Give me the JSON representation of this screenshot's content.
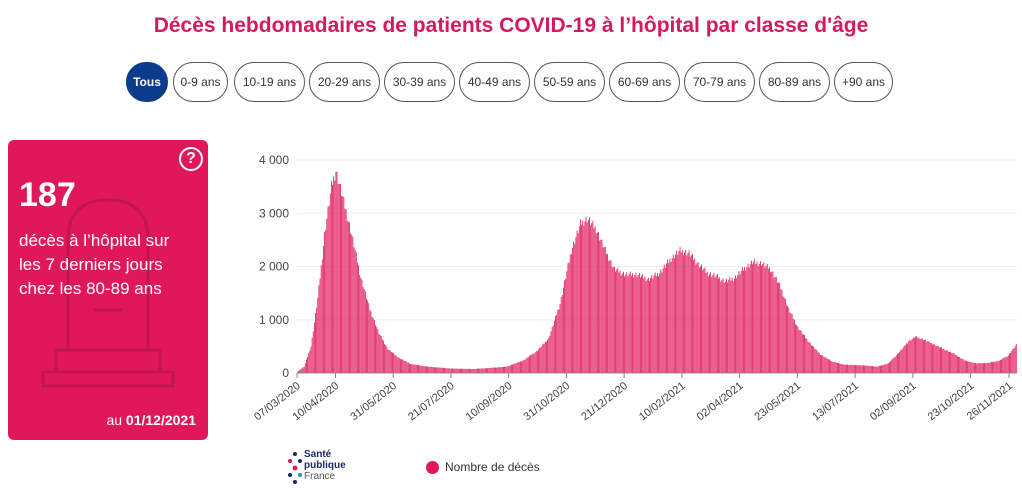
{
  "title": "Décès hebdomadaires de patients COVID-19 à l’hôpital par classe d'âge",
  "filters": [
    "Tous",
    "0-9 ans",
    "10-19 ans",
    "20-29 ans",
    "30-39 ans",
    "40-49 ans",
    "50-59 ans",
    "60-69 ans",
    "70-79 ans",
    "80-89 ans",
    "+90 ans"
  ],
  "active_filter": "Tous",
  "card": {
    "value": "187",
    "line1": "décès à l’hôpital sur",
    "line2": "les 7 derniers jours",
    "line3": "chez les 80-89 ans",
    "date_prefix": "au",
    "date": "01/12/2021",
    "help_icon": "?"
  },
  "logo": {
    "line1": "Santé",
    "line2": "publique",
    "line3": "France"
  },
  "legend": {
    "label": "Nombre de décès",
    "color": "#e0185b"
  },
  "colors": {
    "accent": "#d6195f",
    "bar": "#e0185b",
    "active": "#0b3c8c"
  },
  "chart_data": {
    "type": "bar",
    "series_name": "Nombre de décès",
    "ylim": [
      0,
      4000
    ],
    "yticks": [
      0,
      1000,
      2000,
      3000,
      4000
    ],
    "ytick_labels": [
      "0",
      "1 000",
      "2 000",
      "3 000",
      "4 000"
    ],
    "xtick_labels": [
      "07/03/2020",
      "10/04/2020",
      "31/05/2020",
      "21/07/2020",
      "10/09/2020",
      "31/10/2020",
      "21/12/2020",
      "10/02/2021",
      "02/04/2021",
      "23/05/2021",
      "13/07/2021",
      "02/09/2021",
      "23/10/2021",
      "26/11/2021"
    ],
    "xtick_index": [
      0,
      34,
      85,
      136,
      187,
      238,
      289,
      340,
      391,
      442,
      493,
      544,
      595,
      629
    ],
    "count": 636,
    "key_points": [
      [
        0,
        20
      ],
      [
        6,
        120
      ],
      [
        12,
        500
      ],
      [
        18,
        1400
      ],
      [
        24,
        2600
      ],
      [
        30,
        3500
      ],
      [
        34,
        3800
      ],
      [
        40,
        3300
      ],
      [
        48,
        2600
      ],
      [
        56,
        1800
      ],
      [
        64,
        1200
      ],
      [
        72,
        750
      ],
      [
        80,
        450
      ],
      [
        90,
        280
      ],
      [
        100,
        170
      ],
      [
        115,
        120
      ],
      [
        135,
        85
      ],
      [
        155,
        75
      ],
      [
        170,
        95
      ],
      [
        185,
        120
      ],
      [
        200,
        240
      ],
      [
        212,
        420
      ],
      [
        222,
        650
      ],
      [
        232,
        1300
      ],
      [
        242,
        2300
      ],
      [
        250,
        2800
      ],
      [
        256,
        2900
      ],
      [
        264,
        2700
      ],
      [
        272,
        2300
      ],
      [
        280,
        1950
      ],
      [
        290,
        1850
      ],
      [
        300,
        1850
      ],
      [
        310,
        1760
      ],
      [
        320,
        1880
      ],
      [
        330,
        2150
      ],
      [
        338,
        2300
      ],
      [
        346,
        2250
      ],
      [
        354,
        2050
      ],
      [
        362,
        1880
      ],
      [
        370,
        1820
      ],
      [
        378,
        1720
      ],
      [
        386,
        1780
      ],
      [
        394,
        1950
      ],
      [
        402,
        2080
      ],
      [
        410,
        2060
      ],
      [
        418,
        1950
      ],
      [
        426,
        1650
      ],
      [
        434,
        1200
      ],
      [
        442,
        860
      ],
      [
        452,
        580
      ],
      [
        462,
        350
      ],
      [
        472,
        220
      ],
      [
        482,
        160
      ],
      [
        492,
        150
      ],
      [
        502,
        140
      ],
      [
        512,
        120
      ],
      [
        522,
        180
      ],
      [
        532,
        400
      ],
      [
        540,
        600
      ],
      [
        546,
        680
      ],
      [
        552,
        640
      ],
      [
        560,
        560
      ],
      [
        570,
        460
      ],
      [
        580,
        360
      ],
      [
        590,
        230
      ],
      [
        600,
        180
      ],
      [
        610,
        190
      ],
      [
        620,
        230
      ],
      [
        628,
        330
      ],
      [
        635,
        530
      ]
    ]
  }
}
